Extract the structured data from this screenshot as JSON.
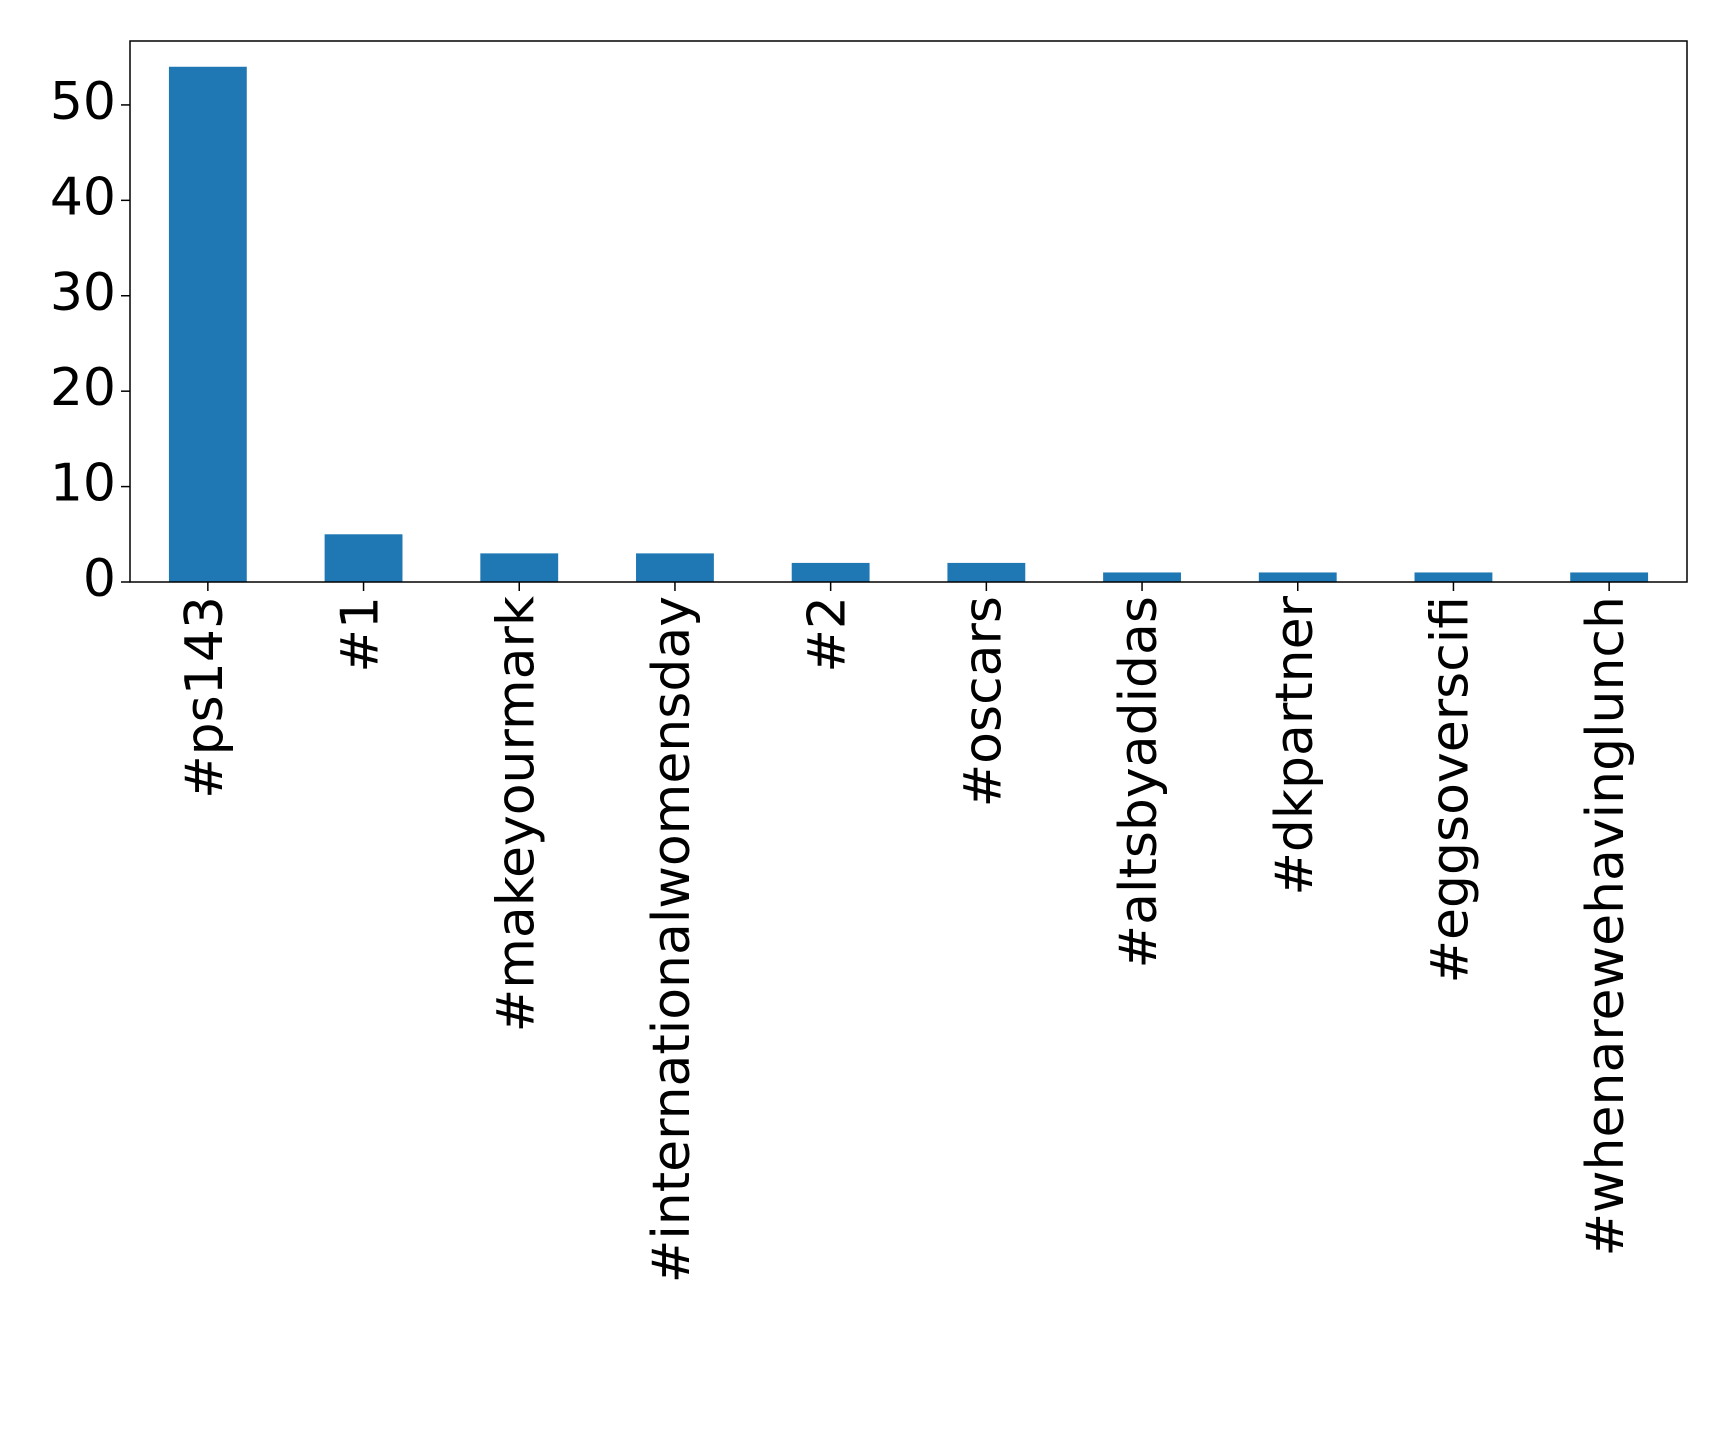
{
  "chart_data": {
    "type": "bar",
    "categories": [
      "#ps143",
      "#1",
      "#makeyourmark",
      "#internationalwomensday",
      "#2",
      "#oscars",
      "#altsbyadidas",
      "#dkpartner",
      "#eggsoverscifi",
      "#whenarewehavinglunch"
    ],
    "values": [
      54,
      5,
      3,
      3,
      2,
      2,
      1,
      1,
      1,
      1
    ],
    "color": "#1f77b4",
    "ylim": [
      0,
      56.7
    ],
    "yticks": [
      0,
      10,
      20,
      30,
      40,
      50
    ],
    "grid": false
  }
}
